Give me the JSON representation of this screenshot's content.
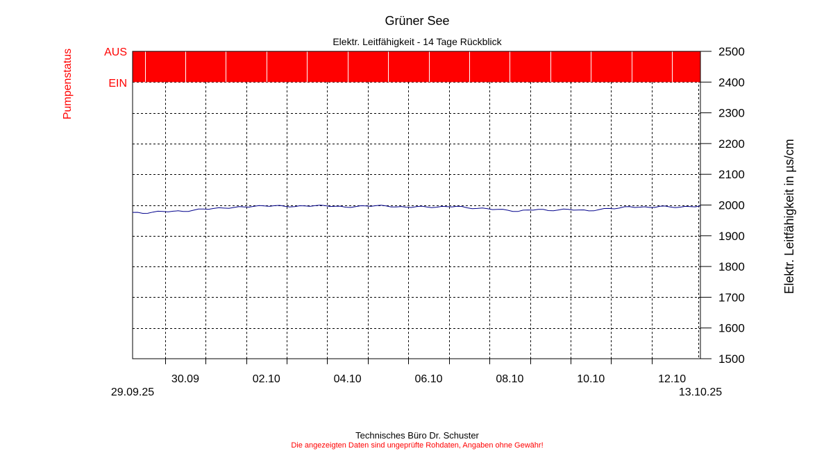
{
  "chart_data": {
    "type": "line",
    "title": "Grüner See",
    "subtitle": "Elektr. Leitfähigkeit - 14 Tage Rückblick",
    "ylabel": "Elektr. Leitfähigkeit in µs/cm",
    "ylim": [
      1500,
      2500
    ],
    "y_ticks": [
      "1500",
      "1600",
      "1700",
      "1800",
      "1900",
      "2000",
      "2100",
      "2200",
      "2300",
      "2400",
      "2500"
    ],
    "x_start": "29.09.25",
    "x_end": "13.10.25",
    "x_tick_labels": [
      "30.09",
      "02.10",
      "04.10",
      "06.10",
      "08.10",
      "10.10",
      "12.10"
    ],
    "grid": true,
    "line_color": "#00008b",
    "series": [
      {
        "values": [
          [
            0.0,
            1976
          ],
          [
            0.25,
            1973
          ],
          [
            0.5,
            1977
          ],
          [
            0.75,
            1979
          ],
          [
            1.0,
            1980
          ],
          [
            1.25,
            1979
          ],
          [
            1.5,
            1983
          ],
          [
            1.75,
            1987
          ],
          [
            2.0,
            1989
          ],
          [
            2.25,
            1990
          ],
          [
            2.5,
            1992
          ],
          [
            2.75,
            1994
          ],
          [
            3.0,
            1996
          ],
          [
            3.25,
            1997
          ],
          [
            3.5,
            1998
          ],
          [
            3.75,
            1996
          ],
          [
            4.0,
            1995
          ],
          [
            4.25,
            1997
          ],
          [
            4.5,
            1998
          ],
          [
            4.75,
            1998
          ],
          [
            5.0,
            1996
          ],
          [
            5.25,
            1993
          ],
          [
            5.5,
            1995
          ],
          [
            5.75,
            1997
          ],
          [
            6.0,
            1998
          ],
          [
            6.25,
            1997
          ],
          [
            6.5,
            1994
          ],
          [
            6.75,
            1993
          ],
          [
            7.0,
            1995
          ],
          [
            7.25,
            1994
          ],
          [
            7.5,
            1993
          ],
          [
            7.75,
            1995
          ],
          [
            8.0,
            1996
          ],
          [
            8.25,
            1991
          ],
          [
            8.5,
            1989
          ],
          [
            8.75,
            1988
          ],
          [
            9.0,
            1986
          ],
          [
            9.25,
            1983
          ],
          [
            9.5,
            1979
          ],
          [
            9.75,
            1984
          ],
          [
            10.0,
            1986
          ],
          [
            10.25,
            1982
          ],
          [
            10.5,
            1984
          ],
          [
            10.75,
            1986
          ],
          [
            11.0,
            1984
          ],
          [
            11.25,
            1981
          ],
          [
            11.5,
            1985
          ],
          [
            11.75,
            1989
          ],
          [
            12.0,
            1990
          ],
          [
            12.25,
            1995
          ],
          [
            12.5,
            1993
          ],
          [
            12.75,
            1992
          ],
          [
            13.0,
            1996
          ],
          [
            13.25,
            1994
          ],
          [
            13.5,
            1993
          ],
          [
            13.75,
            1995
          ],
          [
            14.0,
            1997
          ]
        ]
      }
    ],
    "pump_status": {
      "label": "Pumpenstatus",
      "level_off": "AUS",
      "level_on": "EIN",
      "color": "#ff0000",
      "breaks": [
        0.3,
        1.3,
        2.3,
        3.3,
        4.3,
        5.3,
        6.3,
        7.3,
        8.3,
        9.3,
        10.3,
        11.3,
        12.3,
        13.3
      ]
    }
  },
  "footer": {
    "company": "Technisches Büro Dr. Schuster",
    "disclaimer": "Die angezeigten Daten sind ungeprüfte Rohdaten, Angaben ohne Gewähr!"
  }
}
